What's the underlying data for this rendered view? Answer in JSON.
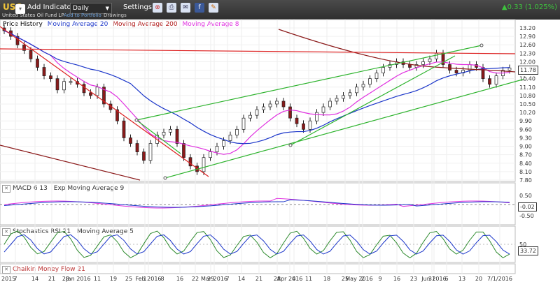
{
  "toolbar": {
    "symbol": "USO",
    "add_indicator": "Add Indicator",
    "period": "Daily",
    "settings": "Settings",
    "full_name": "United States Oil Fund LP",
    "add_portfolio": "Add to Portfolio",
    "drawings": "Drawings",
    "last_price": "0.33 (1.025%)"
  },
  "legends": {
    "price": [
      {
        "label": "Price History",
        "color": "#000000"
      },
      {
        "label": "Moving Average 20",
        "color": "#1a35c9"
      },
      {
        "label": "Moving Average 200",
        "color": "#b01a1a"
      },
      {
        "label": "Moving Average 8",
        "color": "#e030e0"
      }
    ],
    "macd": [
      {
        "label": "MACD 6 13",
        "color": "#000000"
      },
      {
        "label": "Exp Moving Average 9",
        "color": "#000000"
      }
    ],
    "stoch": [
      {
        "label": "Stochastics RSI 21",
        "color": "#000000"
      },
      {
        "label": "Moving Average 5",
        "color": "#000000"
      }
    ],
    "chaikin": [
      {
        "label": "Chaikin Money Flow 21",
        "color": "#000000"
      }
    ]
  },
  "chart_data": {
    "type": "candlestick",
    "y_ticks": [
      "13.20",
      "12.90",
      "12.60",
      "12.30",
      "12.00",
      "11.70",
      "11.40",
      "11.10",
      "10.80",
      "10.50",
      "10.20",
      "9.90",
      "9.60",
      "9.30",
      "9.00",
      "8.70",
      "8.40",
      "8.10",
      "7.80"
    ],
    "last_value": "11.78",
    "macd_ticks": [
      "0.50",
      "-0.50"
    ],
    "macd_value": "-0.02",
    "stoch_ticks": [
      "50"
    ],
    "stoch_value": "33.72",
    "x_labels": [
      "7",
      "14",
      "21",
      "28",
      "Jan 2016",
      "11",
      "19",
      "25",
      "1",
      "Feb 2016",
      "8",
      "16",
      "22",
      "29",
      "Mar 2016",
      "7",
      "14",
      "21",
      "28",
      "Apr 2016",
      "4",
      "11",
      "18",
      "25",
      "May 2016",
      "2",
      "9",
      "16",
      "23",
      "31",
      "Jun 2016",
      "6",
      "13",
      "20",
      "7/1/2016"
    ],
    "year_label_left": "2015",
    "ohlc_close": [
      13.1,
      12.9,
      12.6,
      12.4,
      12.1,
      11.8,
      11.5,
      11.4,
      11.0,
      11.3,
      11.3,
      11.2,
      10.9,
      10.8,
      11.1,
      10.5,
      10.3,
      9.9,
      9.3,
      9.1,
      8.8,
      8.5,
      9.1,
      9.4,
      9.5,
      9.6,
      9.1,
      8.6,
      8.3,
      8.1,
      8.6,
      8.8,
      9.0,
      9.2,
      9.4,
      9.6,
      10.0,
      10.1,
      10.3,
      10.4,
      10.5,
      10.6,
      10.4,
      10.0,
      9.8,
      9.6,
      9.9,
      10.2,
      10.4,
      10.6,
      10.7,
      10.8,
      10.9,
      11.1,
      11.2,
      11.4,
      11.6,
      11.8,
      11.9,
      12.0,
      11.9,
      11.8,
      11.9,
      12.0,
      12.1,
      12.3,
      11.9,
      11.7,
      11.6,
      11.7,
      11.9,
      11.8,
      11.4,
      11.2,
      11.5,
      11.7,
      11.78
    ]
  }
}
